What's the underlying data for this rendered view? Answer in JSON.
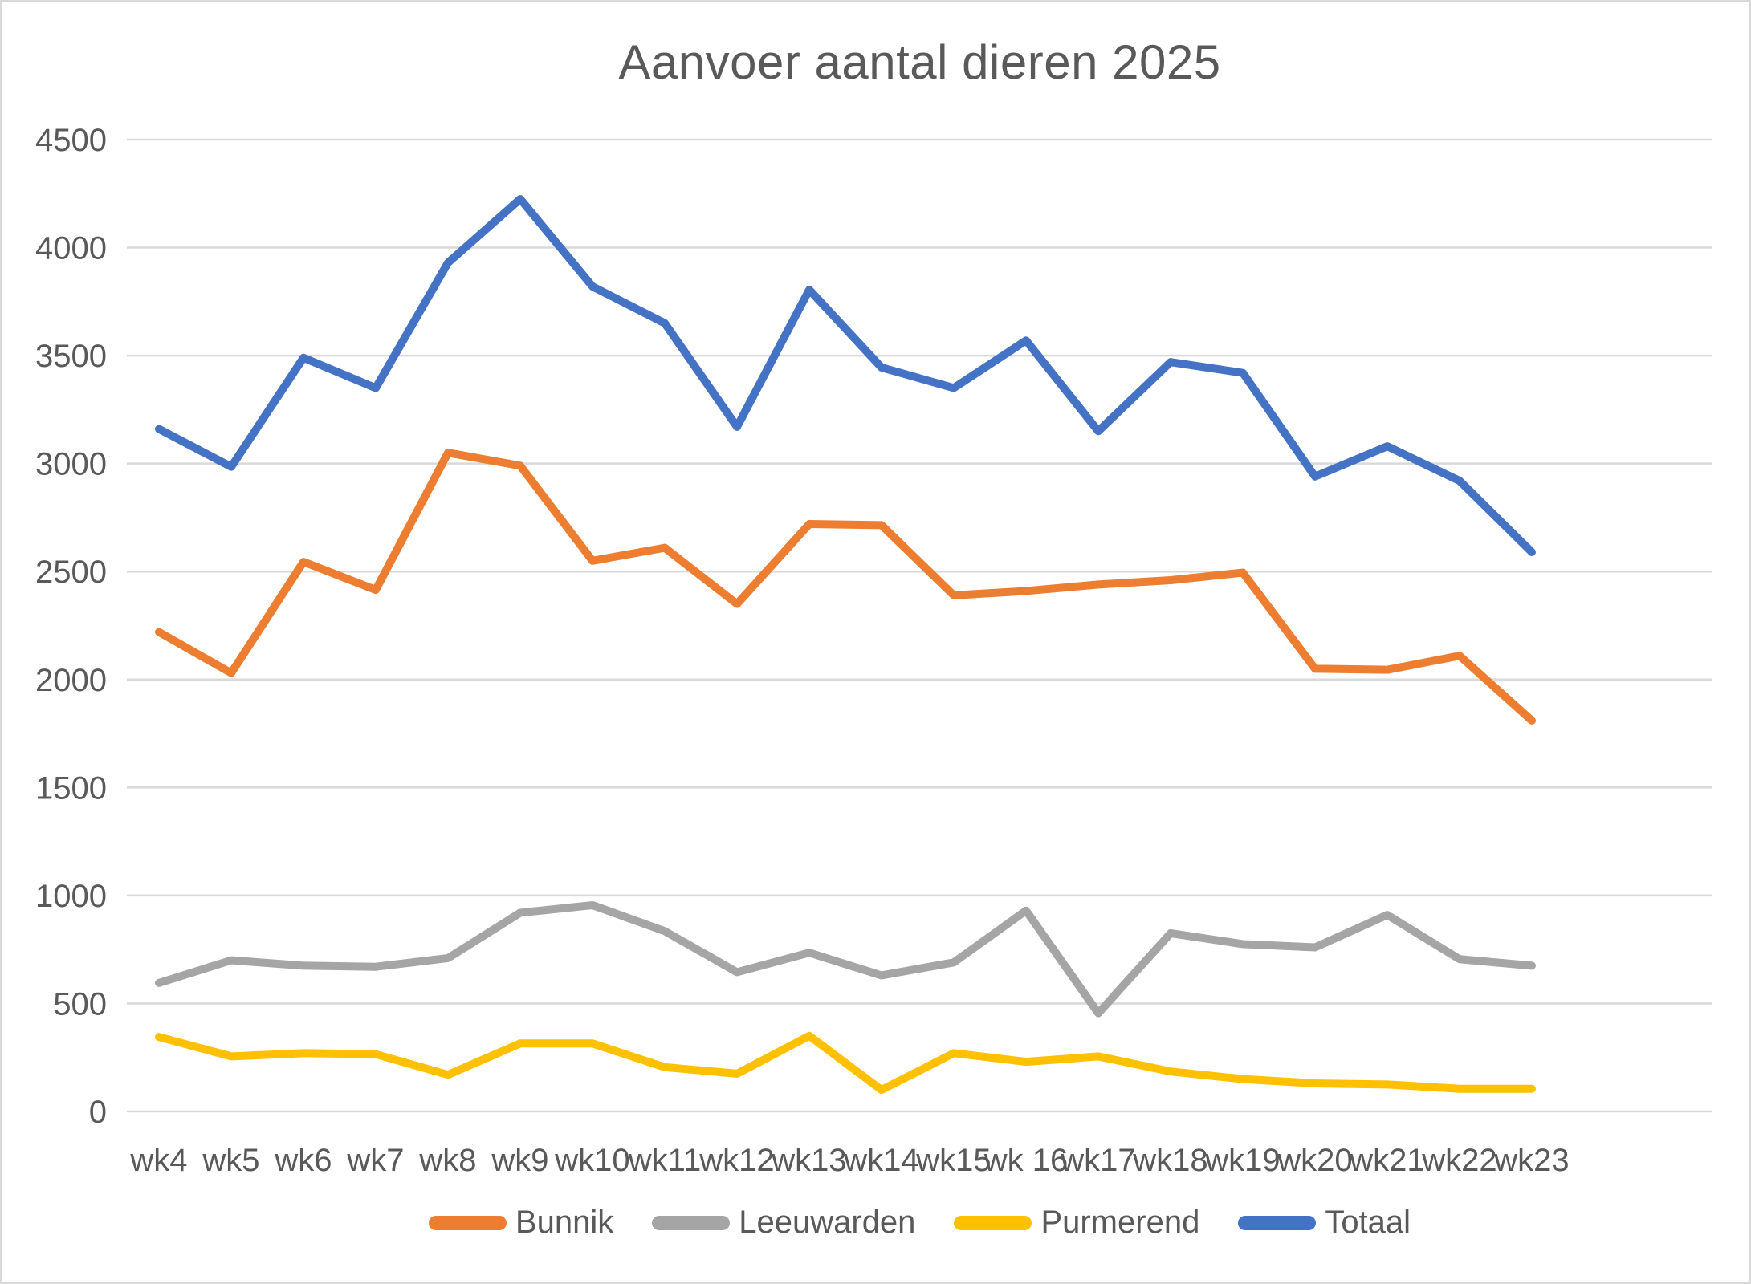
{
  "chart_data": {
    "type": "line",
    "title": "Aanvoer aantal dieren 2025",
    "categories": [
      "wk4",
      "wk5",
      "wk6",
      "wk7",
      "wk8",
      "wk9",
      "wk10",
      "wk11",
      "wk12",
      "wk13",
      "wk14",
      "wk15",
      "wk 16",
      "wk17",
      "wk18",
      "wk19",
      "wk20",
      "wk21",
      "wk22",
      "wk23"
    ],
    "series": [
      {
        "name": "Bunnik",
        "color": "#ED7D31",
        "values": [
          2220,
          2030,
          2545,
          2415,
          3050,
          2990,
          2550,
          2610,
          2350,
          2720,
          2715,
          2390,
          2410,
          2440,
          2460,
          2495,
          2050,
          2045,
          2110,
          1810
        ]
      },
      {
        "name": "Leeuwarden",
        "color": "#A5A5A5",
        "values": [
          595,
          700,
          675,
          670,
          710,
          920,
          955,
          835,
          645,
          735,
          630,
          690,
          930,
          455,
          825,
          775,
          760,
          910,
          705,
          675
        ]
      },
      {
        "name": "Purmerend",
        "color": "#FFC000",
        "values": [
          345,
          255,
          270,
          265,
          170,
          315,
          315,
          205,
          175,
          350,
          100,
          270,
          230,
          255,
          185,
          150,
          130,
          125,
          105,
          105
        ]
      },
      {
        "name": "Totaal",
        "color": "#4472C4",
        "values": [
          3160,
          2985,
          3490,
          3350,
          3930,
          4225,
          3820,
          3650,
          3170,
          3805,
          3445,
          3350,
          3570,
          3150,
          3470,
          3420,
          2940,
          3080,
          2920,
          2590
        ]
      }
    ],
    "xlabel": "",
    "ylabel": "",
    "ylim": [
      0,
      4500
    ],
    "ytick_step": 500,
    "yticks": [
      "0",
      "500",
      "1000",
      "1500",
      "2000",
      "2500",
      "3000",
      "3500",
      "4000",
      "4500"
    ],
    "grid": "horizontal",
    "legend_position": "bottom",
    "colors": {
      "gridline": "#D9D9D9",
      "axis_text": "#595959",
      "title_text": "#595959",
      "frame": "#D9D9D9",
      "background": "#FFFFFF"
    }
  }
}
